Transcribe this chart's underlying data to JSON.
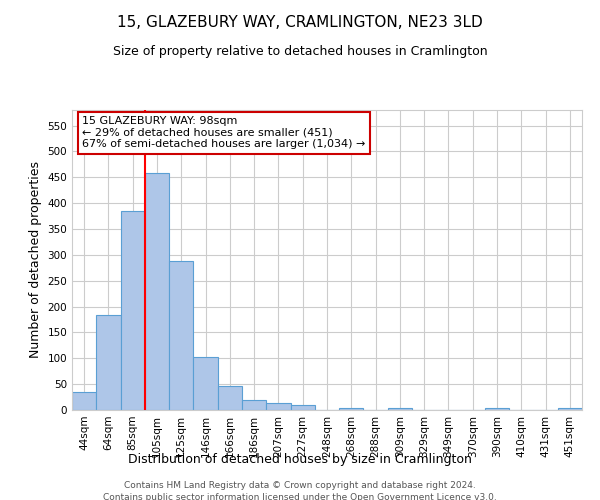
{
  "title": "15, GLAZEBURY WAY, CRAMLINGTON, NE23 3LD",
  "subtitle": "Size of property relative to detached houses in Cramlington",
  "xlabel": "Distribution of detached houses by size in Cramlington",
  "ylabel": "Number of detached properties",
  "categories": [
    "44sqm",
    "64sqm",
    "85sqm",
    "105sqm",
    "125sqm",
    "146sqm",
    "166sqm",
    "186sqm",
    "207sqm",
    "227sqm",
    "248sqm",
    "268sqm",
    "288sqm",
    "309sqm",
    "329sqm",
    "349sqm",
    "370sqm",
    "390sqm",
    "410sqm",
    "431sqm",
    "451sqm"
  ],
  "values": [
    35,
    183,
    385,
    458,
    288,
    103,
    47,
    19,
    13,
    9,
    0,
    4,
    0,
    4,
    0,
    0,
    0,
    3,
    0,
    0,
    3
  ],
  "bar_color": "#aec6e8",
  "bar_edge_color": "#5a9fd4",
  "red_line_x": 2.5,
  "annotation_text": "15 GLAZEBURY WAY: 98sqm\n← 29% of detached houses are smaller (451)\n67% of semi-detached houses are larger (1,034) →",
  "annotation_box_color": "#ffffff",
  "annotation_box_edge_color": "#cc0000",
  "ylim": [
    0,
    580
  ],
  "yticks": [
    0,
    50,
    100,
    150,
    200,
    250,
    300,
    350,
    400,
    450,
    500,
    550
  ],
  "footer_line1": "Contains HM Land Registry data © Crown copyright and database right 2024.",
  "footer_line2": "Contains public sector information licensed under the Open Government Licence v3.0.",
  "bg_color": "#ffffff",
  "grid_color": "#cccccc",
  "title_fontsize": 11,
  "subtitle_fontsize": 9,
  "axis_label_fontsize": 9,
  "annotation_fontsize": 8,
  "tick_fontsize": 7.5,
  "footer_fontsize": 6.5
}
